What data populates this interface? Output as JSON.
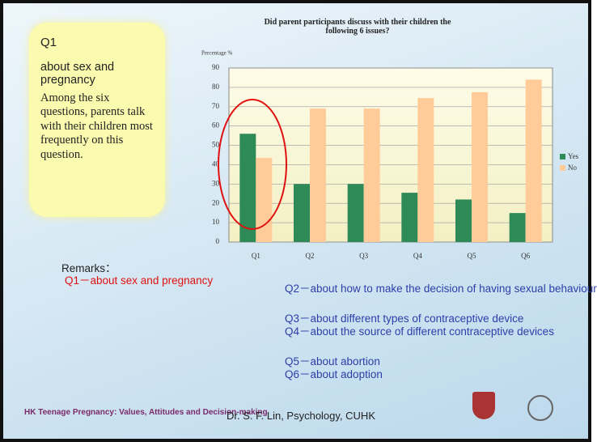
{
  "sidebar": {
    "heading": "Q1",
    "subheading": "about sex and pregnancy",
    "text": "Among the six questions, parents talk with their children most frequently on this question."
  },
  "chart_data": {
    "type": "bar",
    "title": "Did parent participants discuss with their children the following 6 issues?",
    "ylabel": "Percentage %",
    "categories": [
      "Q1",
      "Q2",
      "Q3",
      "Q4",
      "Q5",
      "Q6"
    ],
    "series": [
      {
        "name": "Yes",
        "color": "#2e8b57",
        "values": [
          56,
          30,
          30,
          25.5,
          22,
          15
        ]
      },
      {
        "name": "No",
        "color": "#ffcc99",
        "values": [
          43.5,
          69,
          69,
          74.5,
          77.5,
          84
        ]
      }
    ],
    "ylim": [
      0,
      90
    ],
    "yticks": [
      0,
      10,
      20,
      30,
      40,
      50,
      60,
      70,
      80,
      90
    ],
    "grid": true,
    "legend": "right"
  },
  "remarks": {
    "title": "Remarks：",
    "items": [
      "Q1－about sex and pregnancy",
      "Q2－about how to make the decision of having sexual behaviour",
      "Q3－about different types of contraceptive device",
      "Q4－about the source of different contraceptive devices",
      "Q5－about abortion",
      "Q6－about adoption"
    ]
  },
  "footer": {
    "banner": "HK Teenage Pregnancy: Values, Attitudes and Decision-making",
    "author": "Dr. S. F. Lin, Psychology, CUHK"
  }
}
